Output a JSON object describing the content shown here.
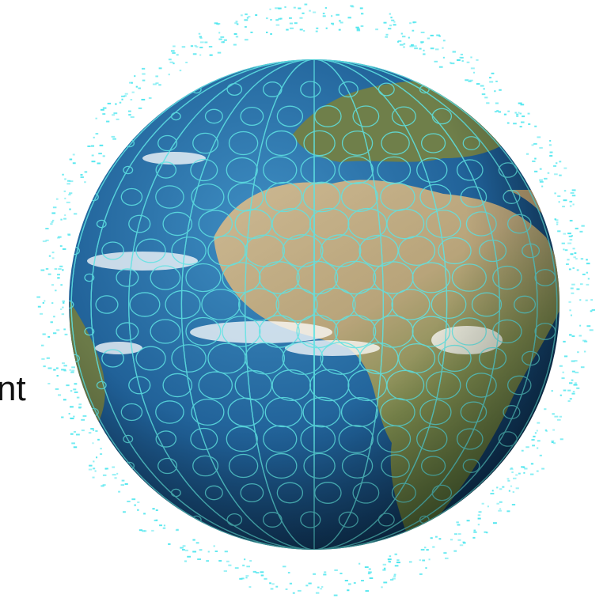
{
  "caption": {
    "text": "nt"
  }
}
